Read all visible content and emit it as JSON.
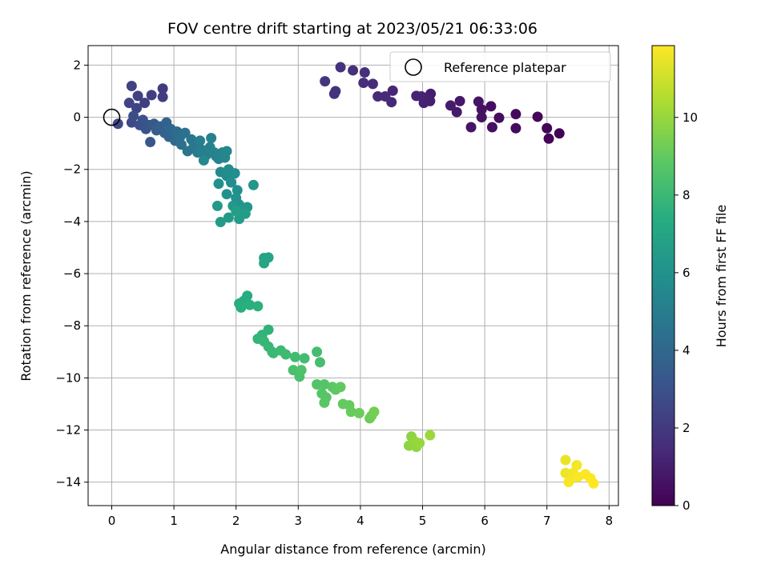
{
  "chart_data": {
    "type": "scatter",
    "title": "FOV centre drift starting at 2023/05/21 06:33:06",
    "xlabel": "Angular distance from reference (arcmin)",
    "ylabel": "Rotation from reference (arcmin)",
    "xlim": [
      -0.38,
      8.15
    ],
    "ylim": [
      -14.9,
      2.75
    ],
    "xticks": [
      0,
      1,
      2,
      3,
      4,
      5,
      6,
      7,
      8
    ],
    "yticks": [
      2,
      0,
      -2,
      -4,
      -6,
      -8,
      -10,
      -12,
      -14
    ],
    "xtick_labels": [
      "0",
      "1",
      "2",
      "3",
      "4",
      "5",
      "6",
      "7",
      "8"
    ],
    "ytick_labels": [
      "2",
      "0",
      "−2",
      "−4",
      "−6",
      "−8",
      "−10",
      "−12",
      "−14"
    ],
    "grid": true,
    "legend": {
      "position": "top-right",
      "entries": [
        "Reference platepar"
      ]
    },
    "colorbar": {
      "label": "Hours from first FF file",
      "colormap": "viridis",
      "range": [
        0,
        11.85
      ],
      "ticks": [
        0,
        2,
        4,
        6,
        8,
        10
      ],
      "tick_labels": [
        "0",
        "2",
        "4",
        "6",
        "8",
        "10"
      ]
    },
    "reference_point": {
      "x": 0,
      "y": 0
    },
    "points": [
      [
        7.2,
        -0.62,
        0.05
      ],
      [
        7.03,
        -0.82,
        0.1
      ],
      [
        7.0,
        -0.42,
        0.15
      ],
      [
        6.85,
        0.02,
        0.2
      ],
      [
        6.5,
        0.12,
        0.3
      ],
      [
        6.5,
        -0.42,
        0.35
      ],
      [
        6.23,
        -0.02,
        0.4
      ],
      [
        6.1,
        0.42,
        0.45
      ],
      [
        6.12,
        -0.38,
        0.5
      ],
      [
        5.95,
        0.0,
        0.55
      ],
      [
        5.95,
        0.3,
        0.6
      ],
      [
        5.9,
        0.6,
        0.65
      ],
      [
        5.78,
        -0.38,
        0.7
      ],
      [
        5.6,
        0.62,
        0.8
      ],
      [
        5.55,
        0.2,
        0.85
      ],
      [
        5.45,
        0.45,
        0.9
      ],
      [
        5.13,
        0.9,
        1.0
      ],
      [
        5.12,
        0.62,
        1.05
      ],
      [
        5.07,
        0.75,
        1.1
      ],
      [
        5.02,
        0.55,
        1.15
      ],
      [
        4.98,
        0.8,
        1.2
      ],
      [
        4.9,
        0.82,
        1.25
      ],
      [
        4.52,
        1.02,
        1.3
      ],
      [
        4.5,
        0.58,
        1.35
      ],
      [
        4.4,
        0.8,
        1.4
      ],
      [
        4.28,
        0.8,
        1.45
      ],
      [
        4.2,
        1.28,
        1.5
      ],
      [
        4.05,
        1.32,
        1.55
      ],
      [
        4.07,
        1.72,
        1.6
      ],
      [
        3.88,
        1.8,
        1.65
      ],
      [
        3.68,
        1.92,
        1.7
      ],
      [
        3.6,
        1.0,
        1.75
      ],
      [
        3.58,
        0.9,
        1.8
      ],
      [
        3.43,
        1.38,
        1.85
      ],
      [
        0.82,
        1.1,
        2.1
      ],
      [
        0.82,
        0.78,
        2.15
      ],
      [
        0.64,
        0.85,
        2.2
      ],
      [
        0.53,
        0.55,
        2.25
      ],
      [
        0.42,
        0.82,
        2.3
      ],
      [
        0.32,
        1.2,
        2.35
      ],
      [
        0.28,
        0.55,
        2.4
      ],
      [
        0.4,
        0.35,
        2.45
      ],
      [
        0.1,
        -0.25,
        2.6
      ],
      [
        0.32,
        -0.2,
        2.7
      ],
      [
        0.35,
        0.05,
        2.8
      ],
      [
        0.45,
        -0.3,
        2.9
      ],
      [
        0.5,
        -0.1,
        3.0
      ],
      [
        0.55,
        -0.45,
        3.1
      ],
      [
        0.6,
        -0.3,
        3.2
      ],
      [
        0.62,
        -0.95,
        3.3
      ],
      [
        0.68,
        -0.25,
        3.4
      ],
      [
        0.72,
        -0.5,
        3.5
      ],
      [
        0.78,
        -0.35,
        3.6
      ],
      [
        0.85,
        -0.6,
        3.7
      ],
      [
        0.88,
        -0.2,
        3.8
      ],
      [
        0.92,
        -0.75,
        3.9
      ],
      [
        0.95,
        -0.45,
        4.0
      ],
      [
        1.02,
        -0.9,
        4.1
      ],
      [
        1.05,
        -0.55,
        4.2
      ],
      [
        1.1,
        -0.75,
        4.3
      ],
      [
        1.12,
        -1.05,
        4.4
      ],
      [
        1.18,
        -0.6,
        4.5
      ],
      [
        1.22,
        -1.3,
        4.6
      ],
      [
        1.28,
        -0.85,
        4.7
      ],
      [
        1.32,
        -1.1,
        4.8
      ],
      [
        1.38,
        -1.35,
        4.9
      ],
      [
        1.42,
        -0.9,
        5.0
      ],
      [
        1.45,
        -1.25,
        5.05
      ],
      [
        1.52,
        -1.45,
        5.1
      ],
      [
        1.58,
        -1.15,
        5.15
      ],
      [
        1.6,
        -0.8,
        5.2
      ],
      [
        1.65,
        -1.35,
        5.25
      ],
      [
        1.68,
        -1.5,
        5.3
      ],
      [
        1.72,
        -1.6,
        5.35
      ],
      [
        1.78,
        -1.35,
        5.4
      ],
      [
        1.82,
        -1.55,
        5.45
      ],
      [
        1.85,
        -1.3,
        5.5
      ],
      [
        1.48,
        -1.65,
        5.55
      ],
      [
        1.75,
        -2.1,
        5.7
      ],
      [
        1.85,
        -2.25,
        5.75
      ],
      [
        1.88,
        -2.0,
        5.8
      ],
      [
        1.92,
        -2.5,
        5.85
      ],
      [
        1.98,
        -2.15,
        5.9
      ],
      [
        2.02,
        -2.8,
        5.95
      ],
      [
        1.72,
        -2.55,
        6.0
      ],
      [
        1.85,
        -2.95,
        6.05
      ],
      [
        2.0,
        -3.1,
        6.1
      ],
      [
        2.05,
        -3.35,
        6.15
      ],
      [
        2.1,
        -3.55,
        6.2
      ],
      [
        2.18,
        -3.45,
        6.25
      ],
      [
        2.28,
        -2.6,
        6.3
      ],
      [
        1.95,
        -3.4,
        6.35
      ],
      [
        1.7,
        -3.4,
        6.4
      ],
      [
        1.88,
        -3.85,
        6.45
      ],
      [
        1.75,
        -4.02,
        6.5
      ],
      [
        2.05,
        -3.9,
        6.55
      ],
      [
        2.15,
        -3.7,
        6.6
      ],
      [
        2.0,
        -3.6,
        6.65
      ],
      [
        2.45,
        -5.4,
        6.9
      ],
      [
        2.52,
        -5.38,
        6.95
      ],
      [
        2.45,
        -5.6,
        7.0
      ],
      [
        2.18,
        -6.85,
        7.3
      ],
      [
        2.12,
        -7.05,
        7.35
      ],
      [
        2.05,
        -7.15,
        7.4
      ],
      [
        2.08,
        -7.3,
        7.45
      ],
      [
        2.22,
        -7.2,
        7.5
      ],
      [
        2.35,
        -7.25,
        7.55
      ],
      [
        2.52,
        -8.15,
        7.7
      ],
      [
        2.42,
        -8.35,
        7.75
      ],
      [
        2.35,
        -8.5,
        7.8
      ],
      [
        2.45,
        -8.6,
        7.85
      ],
      [
        2.52,
        -8.8,
        7.9
      ],
      [
        2.58,
        -9.0,
        7.95
      ],
      [
        2.6,
        -9.05,
        8.0
      ],
      [
        2.72,
        -8.95,
        8.05
      ],
      [
        2.8,
        -9.1,
        8.1
      ],
      [
        2.95,
        -9.2,
        8.15
      ],
      [
        3.1,
        -9.25,
        8.2
      ],
      [
        3.3,
        -9.0,
        8.25
      ],
      [
        3.35,
        -9.4,
        8.3
      ],
      [
        2.92,
        -9.7,
        8.4
      ],
      [
        3.02,
        -9.95,
        8.45
      ],
      [
        3.05,
        -9.7,
        8.5
      ],
      [
        3.3,
        -10.25,
        8.6
      ],
      [
        3.42,
        -10.25,
        8.65
      ],
      [
        3.38,
        -10.6,
        8.7
      ],
      [
        3.45,
        -10.75,
        8.75
      ],
      [
        3.42,
        -10.95,
        8.8
      ],
      [
        3.55,
        -10.35,
        8.85
      ],
      [
        3.6,
        -10.45,
        8.9
      ],
      [
        3.68,
        -10.35,
        8.95
      ],
      [
        3.72,
        -11.0,
        9.0
      ],
      [
        3.82,
        -11.05,
        9.05
      ],
      [
        3.85,
        -11.3,
        9.1
      ],
      [
        3.98,
        -11.35,
        9.15
      ],
      [
        4.15,
        -11.55,
        9.2
      ],
      [
        4.18,
        -11.45,
        9.25
      ],
      [
        4.22,
        -11.3,
        9.3
      ],
      [
        4.82,
        -12.25,
        9.8
      ],
      [
        4.78,
        -12.6,
        9.85
      ],
      [
        4.9,
        -12.65,
        9.9
      ],
      [
        4.88,
        -12.45,
        9.95
      ],
      [
        4.95,
        -12.5,
        10.0
      ],
      [
        5.12,
        -12.2,
        10.1
      ],
      [
        7.3,
        -13.15,
        11.5
      ],
      [
        7.3,
        -13.65,
        11.55
      ],
      [
        7.38,
        -13.85,
        11.6
      ],
      [
        7.42,
        -13.65,
        11.65
      ],
      [
        7.48,
        -13.35,
        11.7
      ],
      [
        7.35,
        -14.0,
        11.75
      ],
      [
        7.5,
        -13.8,
        11.78
      ],
      [
        7.62,
        -13.7,
        11.8
      ],
      [
        7.7,
        -13.85,
        11.82
      ],
      [
        7.75,
        -14.05,
        11.85
      ]
    ]
  }
}
